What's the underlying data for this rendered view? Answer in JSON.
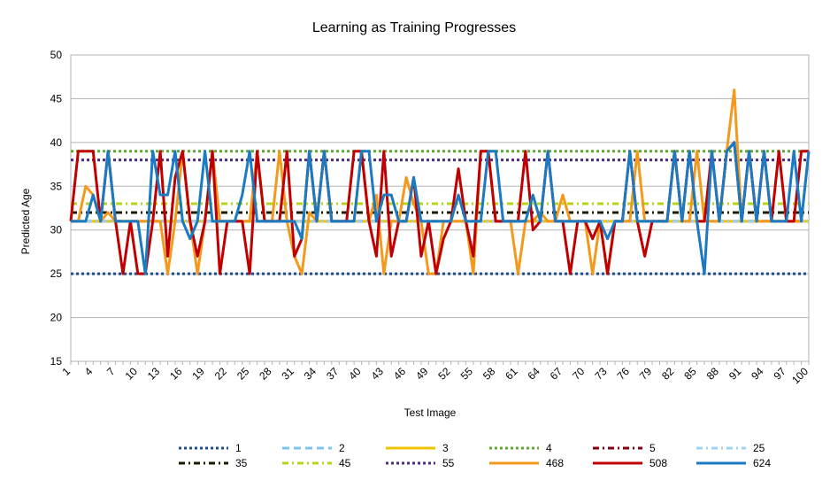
{
  "chart_data": {
    "type": "line",
    "title": "Learning as Training Progresses",
    "xlabel": "Test Image",
    "ylabel": "Predicted Age",
    "ylim": [
      15,
      50
    ],
    "yticks": [
      15,
      20,
      25,
      30,
      35,
      40,
      45,
      50
    ],
    "x": [
      1,
      2,
      3,
      4,
      5,
      6,
      7,
      8,
      9,
      10,
      11,
      12,
      13,
      14,
      15,
      16,
      17,
      18,
      19,
      20,
      21,
      22,
      23,
      24,
      25,
      26,
      27,
      28,
      29,
      30,
      31,
      32,
      33,
      34,
      35,
      36,
      37,
      38,
      39,
      40,
      41,
      42,
      43,
      44,
      45,
      46,
      47,
      48,
      49,
      50,
      51,
      52,
      53,
      54,
      55,
      56,
      57,
      58,
      59,
      60,
      61,
      62,
      63,
      64,
      65,
      66,
      67,
      68,
      69,
      70,
      71,
      72,
      73,
      74,
      75,
      76,
      77,
      78,
      79,
      80,
      81,
      82,
      83,
      84,
      85,
      86,
      87,
      88,
      89,
      90,
      91,
      92,
      93,
      94,
      95,
      96,
      97,
      98,
      99,
      100
    ],
    "xtick_labels": [
      "1",
      "4",
      "7",
      "10",
      "13",
      "16",
      "19",
      "22",
      "25",
      "28",
      "31",
      "34",
      "37",
      "40",
      "43",
      "46",
      "49",
      "52",
      "55",
      "58",
      "61",
      "64",
      "67",
      "70",
      "73",
      "76",
      "79",
      "82",
      "85",
      "88",
      "91",
      "94",
      "97",
      "100"
    ],
    "grid": true,
    "legend_position": "bottom",
    "series": [
      {
        "name": "1",
        "color": "#1f4e8c",
        "dash": "dotted",
        "constant": 25
      },
      {
        "name": "2",
        "color": "#7fc4ef",
        "dash": "dash",
        "constant": 31
      },
      {
        "name": "3",
        "color": "#f2c400",
        "dash": "solid",
        "constant": 31
      },
      {
        "name": "4",
        "color": "#5fa832",
        "dash": "dotted",
        "constant": 39
      },
      {
        "name": "5",
        "color": "#800014",
        "dash": "dashdot",
        "constant": 31
      },
      {
        "name": "25",
        "color": "#9fd3f2",
        "dash": "dashdot",
        "constant": 31
      },
      {
        "name": "35",
        "color": "#1c1c00",
        "dash": "dashdot",
        "constant": 32
      },
      {
        "name": "45",
        "color": "#b5d41a",
        "dash": "dashdot",
        "constant": 33
      },
      {
        "name": "55",
        "color": "#4b2a80",
        "dash": "dotted",
        "constant": 38
      },
      {
        "name": "468",
        "color": "#f39a1d",
        "dash": "solid",
        "values": [
          31,
          31,
          35,
          34,
          31,
          32,
          31,
          31,
          31,
          31,
          31,
          31,
          31,
          25,
          31,
          39,
          31,
          25,
          31,
          39,
          31,
          31,
          31,
          31,
          31,
          39,
          31,
          31,
          39,
          31,
          27,
          25,
          32,
          31,
          39,
          31,
          31,
          31,
          31,
          39,
          31,
          34,
          25,
          31,
          31,
          36,
          33,
          31,
          25,
          25,
          31,
          31,
          31,
          31,
          25,
          39,
          39,
          31,
          31,
          31,
          25,
          31,
          31,
          32,
          31,
          31,
          34,
          31,
          31,
          31,
          25,
          31,
          25,
          31,
          31,
          31,
          39,
          31,
          31,
          31,
          31,
          39,
          31,
          31,
          39,
          31,
          31,
          31,
          39,
          46,
          31,
          39,
          31,
          31,
          31,
          31,
          31,
          31,
          31,
          39
        ]
      },
      {
        "name": "508",
        "color": "#c00000",
        "dash": "solid",
        "values": [
          31,
          39,
          39,
          39,
          31,
          39,
          31,
          25,
          31,
          25,
          25,
          31,
          39,
          27,
          36,
          39,
          31,
          27,
          31,
          39,
          25,
          31,
          31,
          31,
          25,
          39,
          31,
          31,
          31,
          39,
          27,
          29,
          39,
          31,
          39,
          31,
          31,
          31,
          39,
          39,
          31,
          27,
          39,
          27,
          31,
          31,
          36,
          27,
          31,
          25,
          29,
          31,
          37,
          31,
          27,
          39,
          39,
          31,
          31,
          31,
          31,
          39,
          30,
          31,
          39,
          31,
          31,
          25,
          31,
          31,
          29,
          31,
          25,
          31,
          31,
          39,
          31,
          27,
          31,
          31,
          31,
          39,
          31,
          39,
          31,
          31,
          39,
          31,
          39,
          40,
          31,
          39,
          31,
          39,
          31,
          39,
          31,
          31,
          39,
          39
        ]
      },
      {
        "name": "624",
        "color": "#1a7ac2",
        "dash": "solid",
        "values": [
          31,
          31,
          31,
          34,
          31,
          39,
          31,
          31,
          31,
          31,
          25,
          39,
          34,
          34,
          39,
          31,
          29,
          31,
          39,
          31,
          31,
          31,
          31,
          34,
          39,
          31,
          31,
          31,
          31,
          31,
          31,
          29,
          39,
          31,
          39,
          31,
          31,
          31,
          31,
          39,
          39,
          31,
          34,
          34,
          31,
          31,
          36,
          31,
          31,
          31,
          31,
          31,
          34,
          31,
          31,
          31,
          39,
          39,
          31,
          31,
          31,
          31,
          34,
          31,
          39,
          31,
          31,
          31,
          31,
          31,
          31,
          31,
          29,
          31,
          31,
          39,
          31,
          31,
          31,
          31,
          31,
          39,
          31,
          39,
          31,
          25,
          39,
          31,
          39,
          40,
          31,
          39,
          31,
          39,
          31,
          31,
          31,
          39,
          31,
          39
        ]
      }
    ]
  }
}
